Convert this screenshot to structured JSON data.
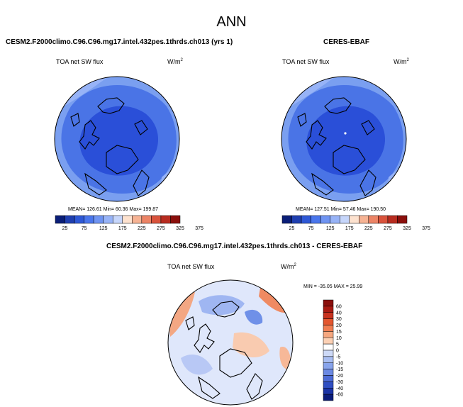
{
  "figure": {
    "title": "ANN",
    "diff_title": "CESM2.F2000climo.C96.C96.mg17.intel.432pes.1thrds.ch013 - CERES-EBAF"
  },
  "panels": [
    {
      "title": "CESM2.F2000climo.C96.C96.mg17.intel.432pes.1thrds.ch013 (yrs 1)",
      "variable": "TOA net SW flux",
      "units": "W/m",
      "units_sup": "2",
      "stats": "MEAN= 126.61  Min=  60.36  Max= 199.87"
    },
    {
      "title": "CERES-EBAF",
      "variable": "TOA net SW flux",
      "units": "W/m",
      "units_sup": "2",
      "stats": "MEAN= 127.51  Min=  57.46  Max= 190.50"
    },
    {
      "title": "",
      "variable": "TOA net SW flux",
      "units": "W/m",
      "units_sup": "2",
      "stats": "MIN = -35.05 MAX =  25.99"
    }
  ],
  "colors": {
    "sequential_bar": [
      "#0a1e78",
      "#1f3fb0",
      "#2e58d6",
      "#4a76ec",
      "#6f94f2",
      "#97b3f7",
      "#c6d6fb",
      "#fde2cf",
      "#f6b394",
      "#ec8466",
      "#d9533c",
      "#b82c20",
      "#8a0f0c"
    ],
    "diverging_bar": [
      "#8a0f0c",
      "#a81a12",
      "#c8321f",
      "#e3562f",
      "#f07d52",
      "#f6a77f",
      "#fbd0b4",
      "#ffffff",
      "#cdd9f7",
      "#a9bef2",
      "#88a4ec",
      "#6b89e3",
      "#4d6bd6",
      "#2f4ec2",
      "#1a33a6",
      "#0b1c7a"
    ],
    "map_light": "#7a9ff0",
    "map_mid": "#4a74e6",
    "map_dark": "#2a4fd8",
    "map_diff_base": "#dfe7fb"
  },
  "chart_data": [
    {
      "type": "heatmap",
      "projection": "north-polar-stereographic",
      "title": "CESM2.F2000climo.C96.C96.mg17.intel.432pes.1thrds.ch013 (yrs 1)",
      "variable": "TOA net SW flux",
      "stats": {
        "mean": 126.61,
        "min": 60.36,
        "max": 199.87
      },
      "colorbar_levels": [
        25,
        50,
        75,
        100,
        125,
        150,
        175,
        200,
        225,
        250,
        275,
        300,
        325,
        350,
        375
      ],
      "colorbar_tick_labels": [
        "25",
        "75",
        "125",
        "175",
        "225",
        "275",
        "325",
        "375"
      ]
    },
    {
      "type": "heatmap",
      "projection": "north-polar-stereographic",
      "title": "CERES-EBAF",
      "variable": "TOA net SW flux",
      "stats": {
        "mean": 127.51,
        "min": 57.46,
        "max": 190.5
      },
      "colorbar_levels": [
        25,
        50,
        75,
        100,
        125,
        150,
        175,
        200,
        225,
        250,
        275,
        300,
        325,
        350,
        375
      ],
      "colorbar_tick_labels": [
        "25",
        "75",
        "125",
        "175",
        "225",
        "275",
        "325",
        "375"
      ]
    },
    {
      "type": "heatmap",
      "projection": "north-polar-stereographic",
      "title": "CESM2.F2000climo.C96.C96.mg17.intel.432pes.1thrds.ch013 - CERES-EBAF",
      "variable": "TOA net SW flux",
      "stats": {
        "min": -35.05,
        "max": 25.99
      },
      "colorbar_tick_labels": [
        "60",
        "40",
        "30",
        "20",
        "15",
        "10",
        "5",
        "0",
        "-5",
        "-10",
        "-15",
        "-20",
        "-30",
        "-40",
        "-60"
      ]
    }
  ]
}
